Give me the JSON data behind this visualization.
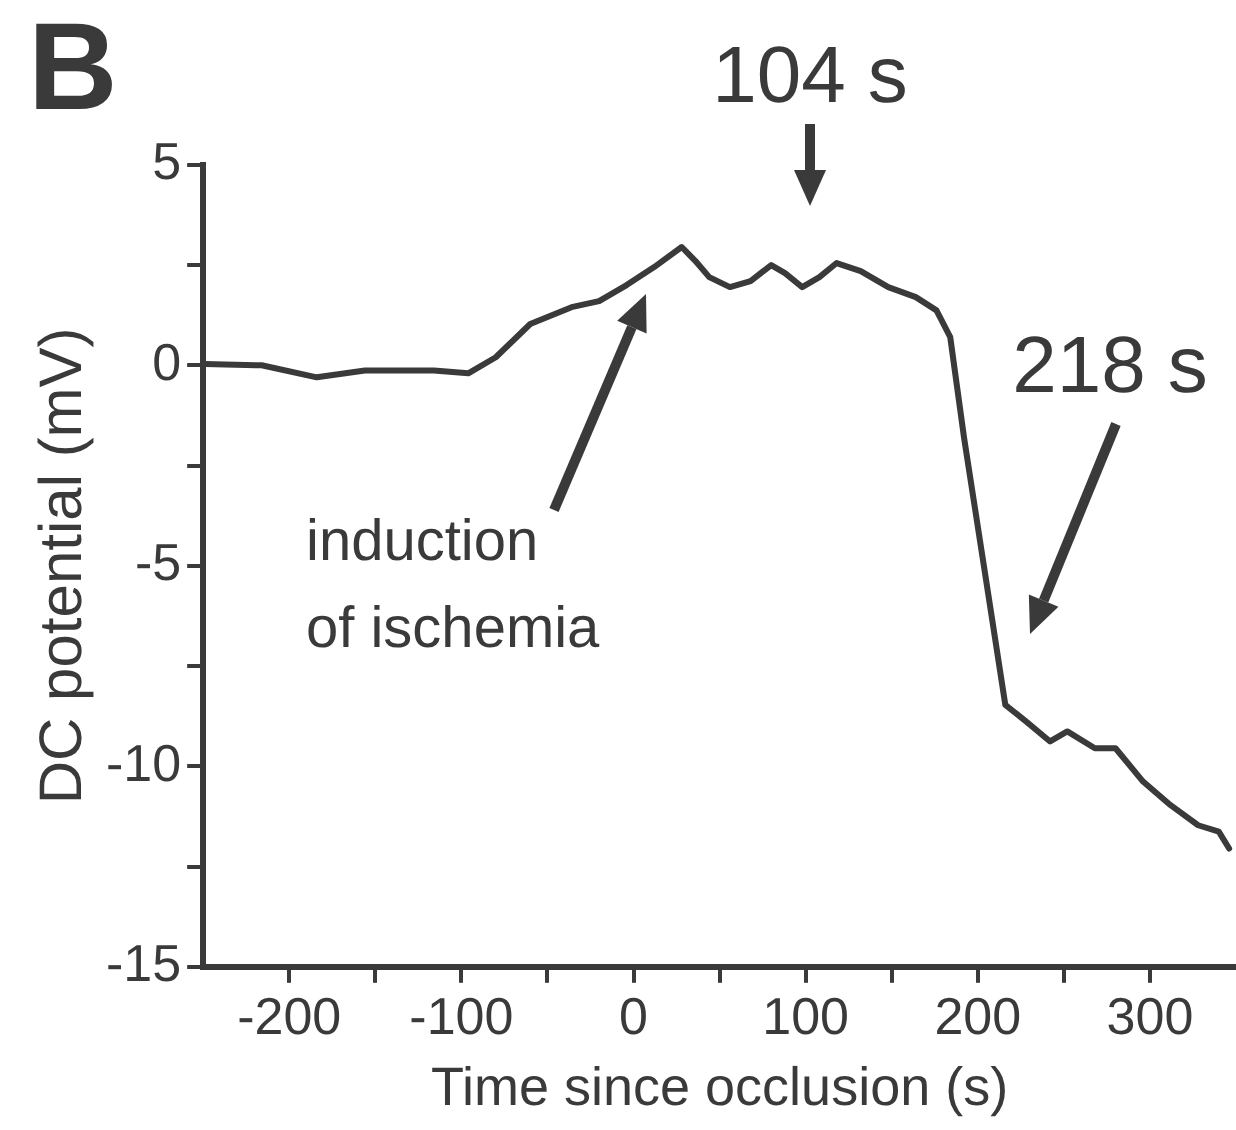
{
  "chart_data": {
    "type": "line",
    "title": "B",
    "xlabel": "Time since occlusion (s)",
    "ylabel": "DC potential (mV)",
    "x": [
      -249,
      -216,
      -184,
      -156,
      -116,
      -96,
      -80,
      -60,
      -36,
      -20,
      -4,
      12,
      28,
      36,
      44,
      56,
      68,
      80,
      88,
      98,
      108,
      118,
      132,
      148,
      164,
      176,
      184,
      192,
      204,
      216,
      228,
      242,
      252,
      268,
      280,
      296,
      312,
      328,
      340,
      346
    ],
    "series": [
      {
        "color": "#3a3a3a",
        "values": [
          0.03,
          0,
          -0.3,
          -0.13,
          -0.13,
          -0.2,
          0.2,
          1.03,
          1.45,
          1.6,
          2.0,
          2.45,
          2.95,
          2.6,
          2.2,
          1.95,
          2.1,
          2.5,
          2.3,
          1.95,
          2.2,
          2.55,
          2.35,
          1.95,
          1.7,
          1.37,
          0.7,
          -1.8,
          -5.13,
          -8.47,
          -8.88,
          -9.38,
          -9.13,
          -9.55,
          -9.55,
          -10.38,
          -10.97,
          -11.47,
          -11.63,
          -12.05
        ]
      }
    ],
    "xlim": [
      -250,
      350
    ],
    "ylim": [
      -15,
      5
    ],
    "xticks": [
      -200,
      {
        "value": -150,
        "label": null
      },
      -100,
      {
        "value": -50,
        "label": null
      },
      0,
      {
        "value": 50,
        "label": null
      },
      100,
      {
        "value": 150,
        "label": null
      },
      200,
      {
        "value": 250,
        "label": null
      },
      300
    ],
    "yticks": [
      -15,
      {
        "value": -12.5,
        "label": null
      },
      -10,
      {
        "value": -7.5,
        "label": null
      },
      -5,
      {
        "value": -2.5,
        "label": null
      },
      0,
      {
        "value": 2.5,
        "label": null
      },
      5
    ],
    "annotations": [
      "104 s",
      "218 s",
      "induction\nof ischemia"
    ],
    "grid": false,
    "legend": false,
    "marker": "none",
    "line_style": "solid"
  }
}
